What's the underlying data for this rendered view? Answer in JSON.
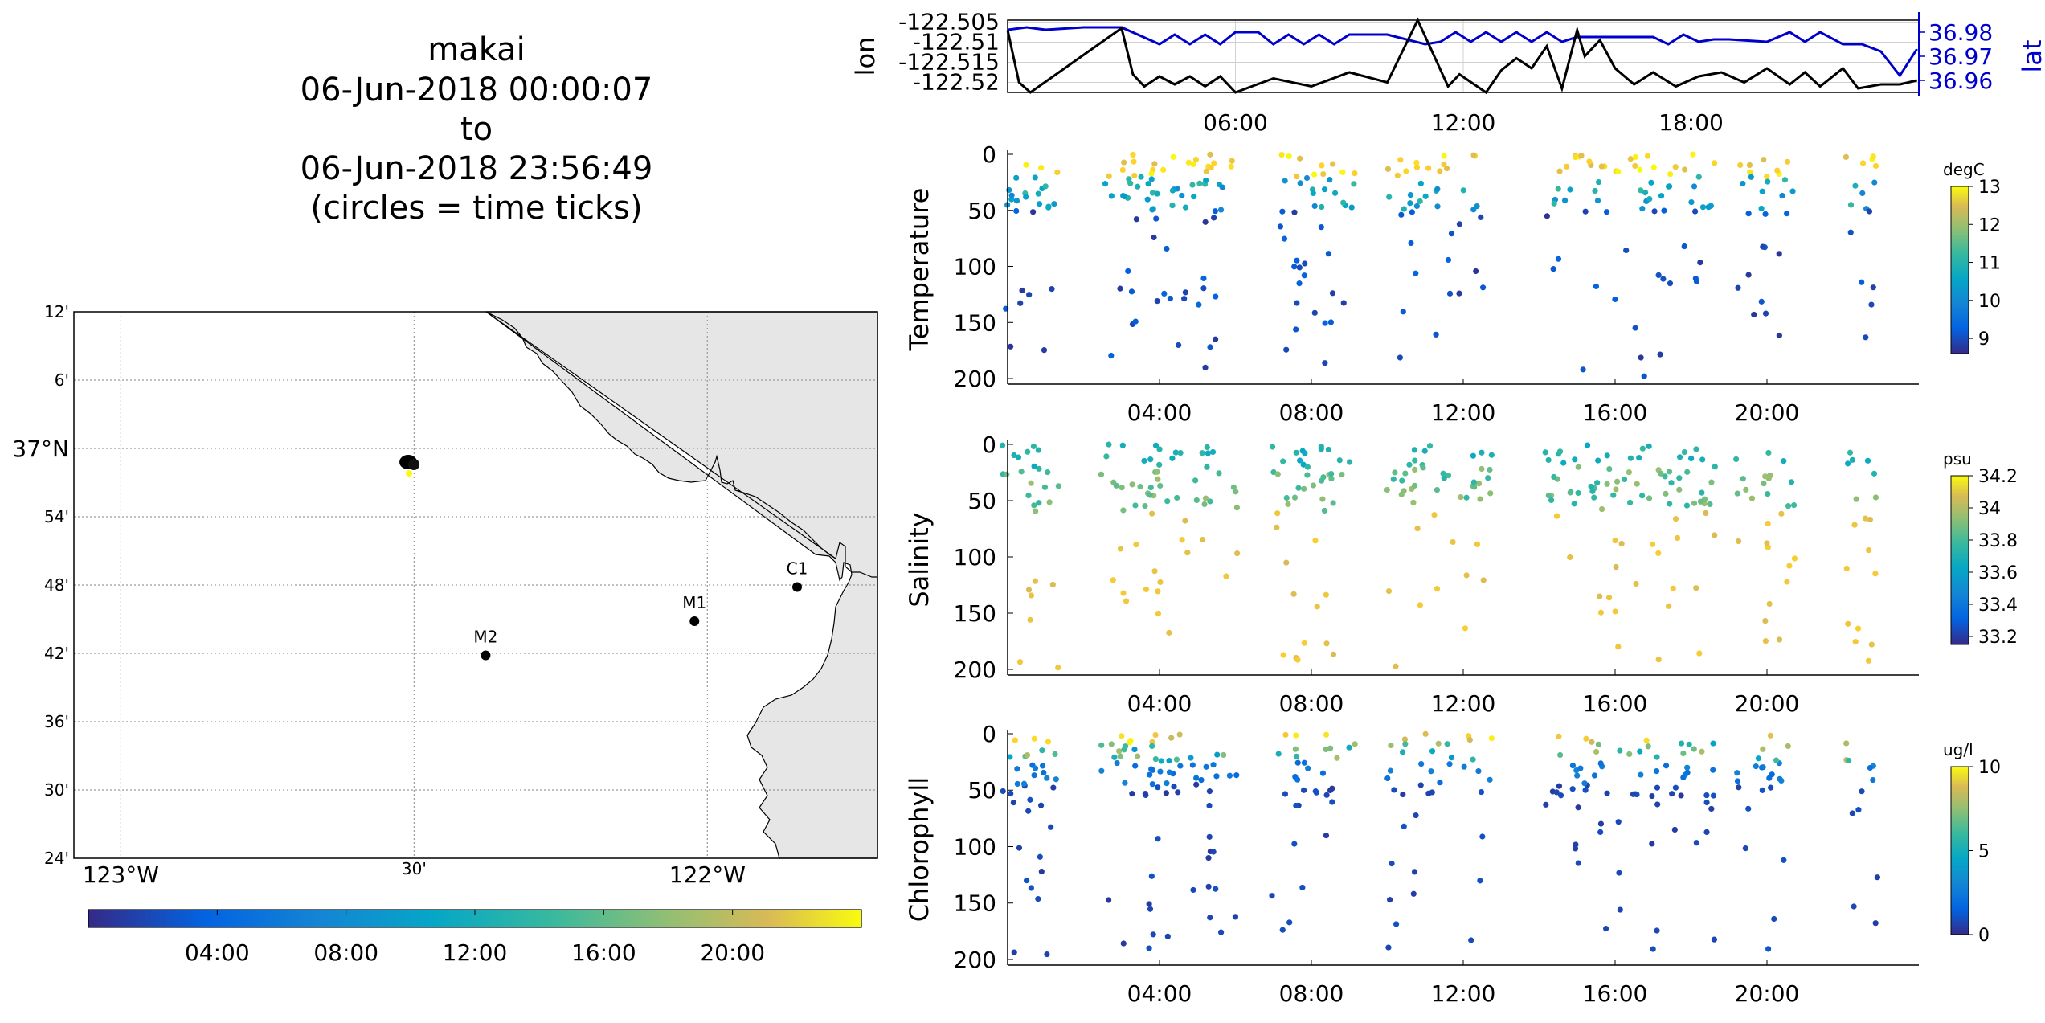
{
  "title": {
    "lines": [
      "makai",
      "06-Jun-2018 00:00:07",
      "to",
      "06-Jun-2018 23:56:49",
      "(circles = time ticks)"
    ]
  },
  "colors": {
    "lon_line": "#000000",
    "lat_line": "#0000cc",
    "land": "#e6e6e6",
    "grid": "#b0b0b0",
    "station": "#000000"
  },
  "map": {
    "lat_ticks": [
      "12'",
      "6'",
      "37°N",
      "54'",
      "48'",
      "42'",
      "36'",
      "30'",
      "24'"
    ],
    "lon_ticks": [
      "123°W",
      "30'",
      "122°W"
    ],
    "lat_range": [
      36.4,
      37.2
    ],
    "lon_range": [
      -123.08,
      -121.71
    ],
    "stations": [
      {
        "name": "C1",
        "lat": 36.797,
        "lon": -121.847
      },
      {
        "name": "M1",
        "lat": 36.747,
        "lon": -122.022
      },
      {
        "name": "M2",
        "lat": 36.697,
        "lon": -122.378
      }
    ],
    "track_center": {
      "lat": 36.98,
      "lon": -122.51
    },
    "colorbar_ticks": [
      "04:00",
      "08:00",
      "12:00",
      "16:00",
      "20:00"
    ]
  },
  "chart_data": [
    {
      "type": "line",
      "name": "lon-lat time series",
      "x_ticks": [
        "06:00",
        "12:00",
        "18:00"
      ],
      "xlim": [
        0,
        24
      ],
      "ylabel": "lon",
      "ylabel_right": "lat",
      "y_ticks": [
        "-122.505",
        "-122.51",
        "-122.515",
        "-122.52"
      ],
      "y_ticks_right": [
        "36.98",
        "36.97",
        "36.96"
      ],
      "ylim": [
        -122.5225,
        -122.5045
      ],
      "ylim_right": [
        36.955,
        36.985
      ],
      "series": [
        {
          "name": "lon",
          "axis": "left",
          "x": [
            0,
            0.3,
            0.6,
            3.0,
            3.3,
            3.6,
            4.0,
            4.4,
            4.8,
            5.2,
            5.6,
            6.0,
            7.0,
            8.0,
            9.0,
            10.0,
            10.8,
            11.6,
            11.9,
            12.6,
            13.0,
            13.4,
            13.8,
            14.2,
            14.6,
            15.0,
            15.2,
            15.6,
            16.0,
            16.5,
            17.0,
            17.6,
            18.2,
            18.8,
            19.4,
            20.0,
            20.6,
            21.0,
            21.4,
            22.0,
            22.4,
            23.0,
            23.5,
            23.95
          ],
          "y": [
            -122.507,
            -122.52,
            -122.5225,
            -122.5065,
            -122.518,
            -122.521,
            -122.5185,
            -122.5205,
            -122.5185,
            -122.521,
            -122.5185,
            -122.5225,
            -122.519,
            -122.521,
            -122.5175,
            -122.52,
            -122.5045,
            -122.521,
            -122.518,
            -122.5225,
            -122.517,
            -122.514,
            -122.5165,
            -122.511,
            -122.5215,
            -122.507,
            -122.5135,
            -122.5095,
            -122.5165,
            -122.5205,
            -122.5175,
            -122.521,
            -122.5185,
            -122.5175,
            -122.52,
            -122.5165,
            -122.5205,
            -122.5175,
            -122.521,
            -122.5165,
            -122.5215,
            -122.5205,
            -122.5205,
            -122.5195
          ]
        },
        {
          "name": "lat",
          "axis": "right",
          "x": [
            0,
            0.5,
            1.0,
            2.0,
            3.0,
            4.0,
            4.4,
            4.8,
            5.2,
            5.6,
            6.0,
            6.6,
            7.0,
            7.4,
            7.8,
            8.2,
            8.6,
            9.0,
            10.0,
            11.0,
            11.4,
            11.8,
            12.2,
            12.6,
            13.0,
            13.4,
            13.8,
            14.2,
            14.6,
            15.0,
            16.0,
            17.0,
            17.4,
            17.8,
            18.2,
            18.6,
            19.0,
            20.0,
            20.6,
            21.0,
            21.4,
            22.0,
            22.5,
            23.0,
            23.5,
            23.95
          ],
          "y": [
            36.981,
            36.982,
            36.981,
            36.982,
            36.982,
            36.975,
            36.979,
            36.975,
            36.979,
            36.975,
            36.98,
            36.98,
            36.975,
            36.979,
            36.975,
            36.979,
            36.975,
            36.979,
            36.979,
            36.975,
            36.976,
            36.98,
            36.976,
            36.98,
            36.976,
            36.98,
            36.976,
            36.98,
            36.976,
            36.978,
            36.978,
            36.978,
            36.975,
            36.979,
            36.976,
            36.977,
            36.977,
            36.976,
            36.98,
            36.976,
            36.98,
            36.975,
            36.975,
            36.972,
            36.962,
            36.973
          ]
        }
      ]
    },
    {
      "type": "scatter",
      "ylabel": "Temperature",
      "xlim": [
        0,
        24
      ],
      "ylim": [
        0,
        205
      ],
      "x_ticks": [
        "04:00",
        "08:00",
        "12:00",
        "16:00",
        "20:00"
      ],
      "y_ticks": [
        "0",
        "50",
        "100",
        "150",
        "200"
      ],
      "colorbar": {
        "label": "degC",
        "range": [
          8.6,
          13
        ],
        "ticks": [
          "13",
          "12",
          "11",
          "10",
          "9"
        ]
      },
      "casts": [
        0.3,
        0.9,
        2.9,
        3.4,
        4.1,
        4.9,
        5.6,
        7.4,
        8.0,
        8.7,
        10.4,
        11.3,
        12.3,
        14.6,
        15.4,
        16.4,
        17.3,
        18.2,
        19.6,
        20.3,
        22.5
      ],
      "depth_range": [
        0,
        200
      ],
      "value_trend": "warm (13) near surface, cold (9) at depth"
    },
    {
      "type": "scatter",
      "ylabel": "Salinity",
      "xlim": [
        0,
        24
      ],
      "ylim": [
        0,
        205
      ],
      "x_ticks": [
        "04:00",
        "08:00",
        "12:00",
        "16:00",
        "20:00"
      ],
      "y_ticks": [
        "0",
        "50",
        "100",
        "150",
        "200"
      ],
      "colorbar": {
        "label": "psu",
        "range": [
          33.15,
          34.2
        ],
        "ticks": [
          "34.2",
          "34",
          "33.8",
          "33.6",
          "33.4",
          "33.2"
        ]
      },
      "casts": [
        0.3,
        0.9,
        2.9,
        3.4,
        4.1,
        4.9,
        5.6,
        7.4,
        8.0,
        8.7,
        10.4,
        11.3,
        12.3,
        14.6,
        15.4,
        16.4,
        17.3,
        18.2,
        19.6,
        20.3,
        22.5
      ],
      "depth_range": [
        0,
        200
      ],
      "value_trend": "fresher (33.5) near surface, saltier (34) at depth"
    },
    {
      "type": "scatter",
      "ylabel": "Chlorophyll",
      "xlim": [
        0,
        24
      ],
      "ylim": [
        0,
        205
      ],
      "x_ticks": [
        "04:00",
        "08:00",
        "12:00",
        "16:00",
        "20:00"
      ],
      "y_ticks": [
        "0",
        "50",
        "100",
        "150",
        "200"
      ],
      "colorbar": {
        "label": "ug/l",
        "range": [
          0,
          10
        ],
        "ticks": [
          "10",
          "5",
          "0"
        ]
      },
      "casts": [
        0.3,
        0.9,
        2.9,
        3.4,
        4.1,
        4.9,
        5.6,
        7.4,
        8.0,
        8.7,
        10.4,
        11.3,
        12.3,
        14.6,
        15.4,
        16.4,
        17.3,
        18.2,
        19.6,
        20.3,
        22.5
      ],
      "depth_range": [
        0,
        200
      ],
      "value_trend": "high (10) at surface, near 0 below 40 m"
    }
  ]
}
